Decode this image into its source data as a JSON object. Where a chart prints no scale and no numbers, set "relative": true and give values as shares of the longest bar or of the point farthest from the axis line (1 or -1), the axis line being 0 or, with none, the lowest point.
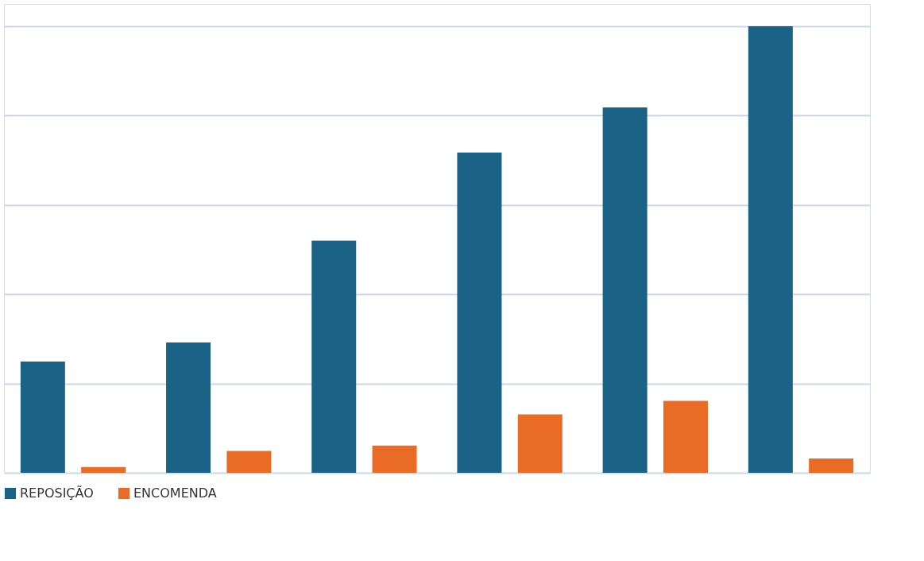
{
  "chart_data": {
    "type": "bar",
    "relative": true,
    "categories": [
      null,
      null,
      null,
      null,
      null,
      null
    ],
    "series": [
      {
        "name": "REPOSIÇÃO",
        "color": "#1b6287",
        "values": [
          0.249,
          0.292,
          0.52,
          0.717,
          0.818,
          1
        ]
      },
      {
        "name": "ENCOMENDA",
        "color": "#ea6b25",
        "values": [
          0.013,
          0.049,
          0.061,
          0.131,
          0.161,
          0.032
        ]
      }
    ],
    "grid": "y",
    "legend": "bottom"
  }
}
